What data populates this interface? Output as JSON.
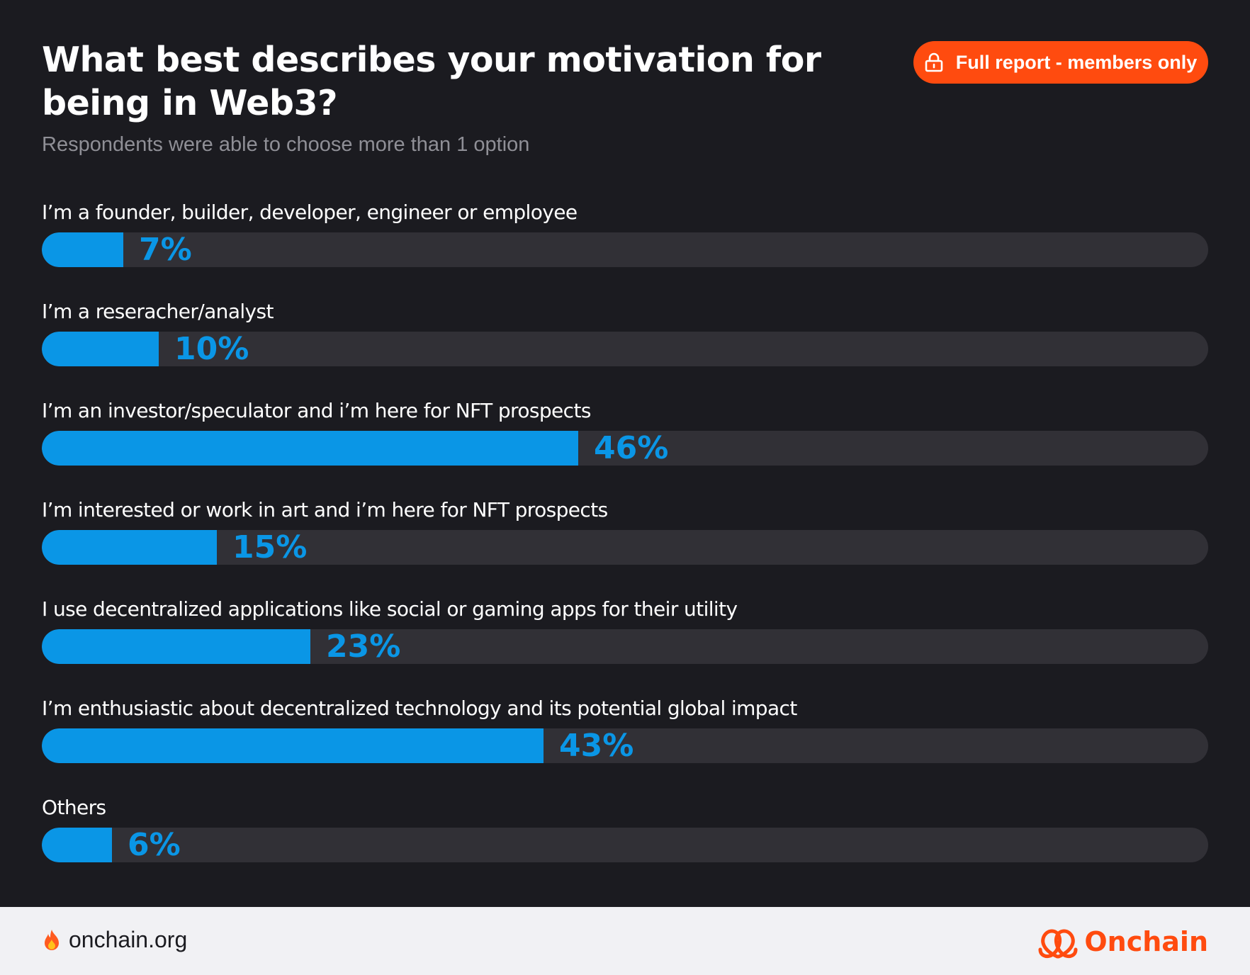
{
  "header": {
    "title": "What best describes your motivation for being in Web3?",
    "subtitle": "Respondents were able to choose more than 1 option",
    "report_button": "Full report - members only"
  },
  "chart_data": {
    "type": "bar",
    "orientation": "horizontal",
    "title": "What best describes your motivation for being in Web3?",
    "subtitle": "Respondents were able to choose more than 1 option",
    "categories": [
      "I’m a founder, builder, developer, engineer or employee",
      "I’m a reseracher/analyst",
      "I’m an investor/speculator and i’m here for NFT prospects",
      "I’m interested or work in art and i’m here for NFT prospects",
      "I use decentralized applications like social or gaming apps for their utility",
      "I’m enthusiastic about decentralized technology and its potential global impact",
      "Others"
    ],
    "values": [
      7,
      10,
      46,
      15,
      23,
      43,
      6
    ],
    "value_labels": [
      "7%",
      "10%",
      "46%",
      "15%",
      "23%",
      "43%",
      "6%"
    ],
    "unit": "%",
    "xlim": [
      0,
      100
    ],
    "grid": false,
    "legend": "none",
    "colors": {
      "bar": "#0a96e6",
      "track": "#313036",
      "background": "#1b1b20"
    }
  },
  "footer": {
    "site": "onchain.org",
    "brand": "Onchain",
    "icons": [
      "flame-icon",
      "onchain-logo-icon"
    ]
  },
  "colors": {
    "accent": "#ff4b0f",
    "footer_bg": "#f1f1f4"
  }
}
